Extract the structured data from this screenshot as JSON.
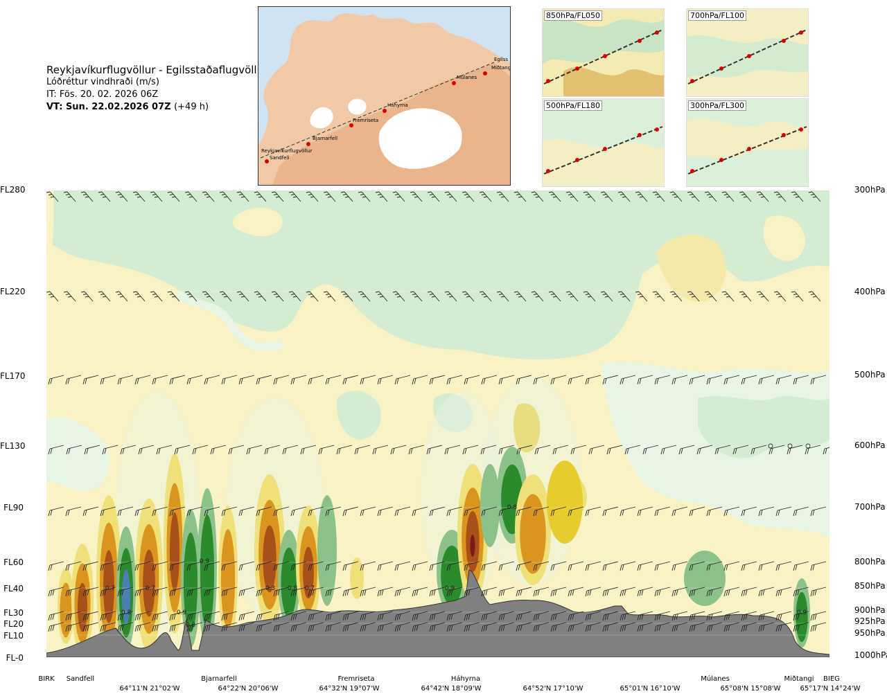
{
  "header": {
    "route_title": "Reykjavíkurflugvöllur - Egilsstaðaflugvöllur",
    "variable": "Lóðréttur vindhraði (m/s)",
    "issue_time": "IT: Fös. 20. 02. 2026 06Z",
    "valid_time": "VT: Sun. 22.02.2026 07Z",
    "lead_time": "(+49 h)"
  },
  "map": {
    "place_labels": [
      "Reykjavíkurflugvöllur",
      "Sandfell",
      "Bjarnarfell",
      "Fremriseta",
      "Háhyrna",
      "Múlanes",
      "Miðtangi",
      "Egilss"
    ]
  },
  "thumbnails": [
    {
      "label": "850hPa/FL050"
    },
    {
      "label": "700hPa/FL100"
    },
    {
      "label": "500hPa/FL180"
    },
    {
      "label": "300hPa/FL300"
    }
  ],
  "chart_data": {
    "type": "heatmap",
    "y_left_labels": [
      "FL280",
      "FL220",
      "FL170",
      "FL130",
      "FL90",
      "FL60",
      "FL40",
      "FL30",
      "FL20",
      "FL10",
      "FL-0"
    ],
    "y_right_labels": [
      "300hPa",
      "400hPa",
      "500hPa",
      "600hPa",
      "700hPa",
      "800hPa",
      "850hPa",
      "900hPa",
      "925hPa",
      "950hPa",
      "1000hPa"
    ],
    "waypoints": [
      "BIRK",
      "Sandfell",
      "Bjarnarfell",
      "Fremriseta",
      "Háhyrna",
      "Múlanes",
      "Miðtangi",
      "BIEG"
    ],
    "coordinates": [
      "64°11'N 21°02'W",
      "64°22'N 20°06'W",
      "64°32'N 19°07'W",
      "64°42'N 18°09'W",
      "64°52'N 17°10'W",
      "65°01'N 16°10'W",
      "65°08'N 15°08'W",
      "65°17'N 14°24'W"
    ],
    "contour_labels": [
      "0.7",
      "0.8",
      "0.7",
      "0.9",
      "0.8",
      "0.9",
      "0.3",
      "0.8",
      "0.7",
      "0.9",
      "0.8",
      "0.9"
    ],
    "colors": {
      "light_green": "#d4ecd2",
      "pale_green": "#e9f5e4",
      "pale_yellow": "#f8f2c4",
      "yellow": "#efe07a",
      "strong_yellow": "#e6cc2c",
      "orange": "#d9951e",
      "brown": "#a8501a",
      "dark_red": "#7b1a12",
      "green": "#8cc28a",
      "dark_green": "#2a8a2c",
      "blue": "#4a7fb0",
      "terrain": "#808080"
    }
  }
}
